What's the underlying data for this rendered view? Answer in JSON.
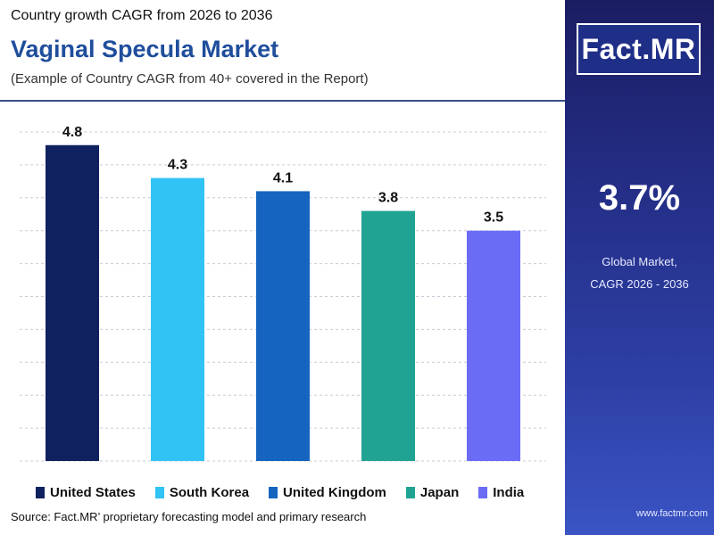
{
  "header": {
    "kicker": "Country growth CAGR from 2026 to 2036",
    "title": "Vaginal Specula Market",
    "subtitle": "(Example of Country CAGR from 40+ covered in the Report)"
  },
  "source": "Source: Fact.MR’ proprietary forecasting model and primary research",
  "sidebar": {
    "logo_text": "Fact.MR",
    "kpi_value": "3.7%",
    "kpi_label_line1": "Global Market,",
    "kpi_label_line2": "CAGR 2026 - 2036",
    "website": "www.factmr.com"
  },
  "colors": {
    "United States": "#0f215f",
    "South Korea": "#30c3f4",
    "United Kingdom": "#1565c0",
    "Japan": "#21a394",
    "India": "#6a6cf6"
  },
  "chart_data": {
    "type": "bar",
    "categories": [
      "United States",
      "South Korea",
      "United Kingdom",
      "Japan",
      "India"
    ],
    "values": [
      4.8,
      4.3,
      4.1,
      3.8,
      3.5
    ],
    "title": "",
    "xlabel": "",
    "ylabel": "",
    "ylim": [
      0,
      5
    ],
    "grid": true,
    "legend": "bottom"
  }
}
